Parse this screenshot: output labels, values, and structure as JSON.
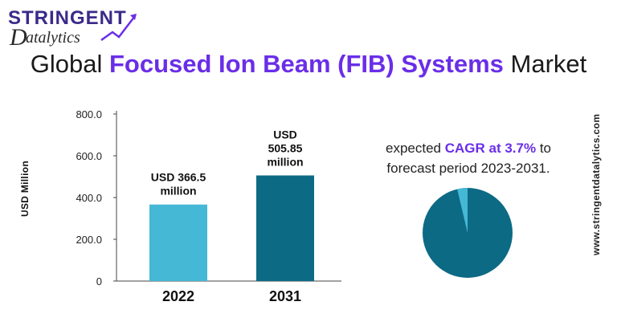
{
  "logo": {
    "line1": "Stringent",
    "line2": "atalytics",
    "initial": "D"
  },
  "title": {
    "prefix": "Global ",
    "highlight": "Focused Ion Beam (FIB) Systems",
    "suffix": " Market"
  },
  "colors": {
    "accent": "#6a2ee8",
    "bar_2022": "#45b8d6",
    "bar_2031": "#0d6a85",
    "pie_main": "#0d6a85",
    "pie_slice": "#45b8d6"
  },
  "chart_data": {
    "type": "bar",
    "categories": [
      "2022",
      "2031"
    ],
    "values": [
      366.5,
      505.85
    ],
    "data_labels": [
      "USD 366.5 million",
      "USD 505.85 million"
    ],
    "ylabel": "USD  Million",
    "y_ticks": [
      "0",
      "200.0",
      "400.0",
      "600.0",
      "800.0"
    ],
    "y_tick_values": [
      0,
      200,
      400,
      600,
      800
    ],
    "ylim": [
      0,
      800
    ]
  },
  "cagr": {
    "line1_prefix": "expected ",
    "line1_highlight": "CAGR at 3.7%",
    "line1_suffix": " to",
    "line2": "forecast period 2023-2031."
  },
  "pie": {
    "cagr_fraction": 0.037
  },
  "website": "www.stringentdatalytics.com"
}
